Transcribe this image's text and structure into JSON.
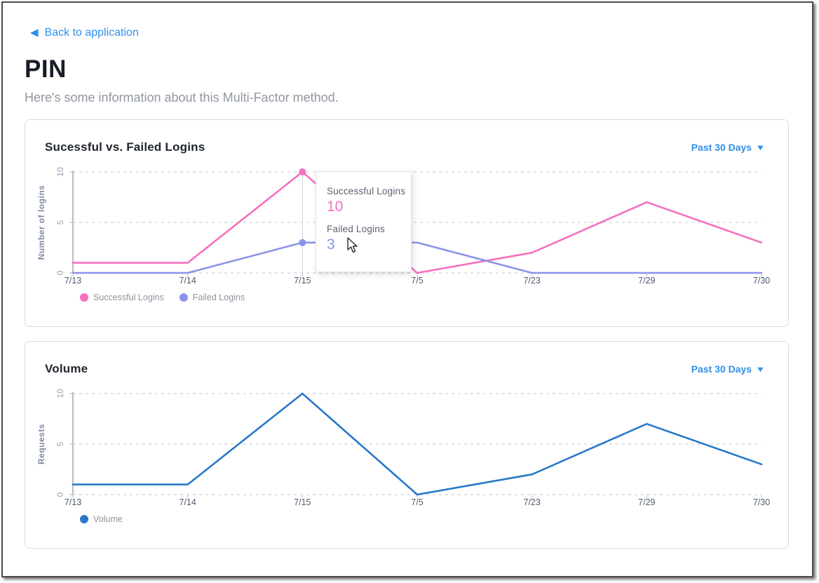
{
  "page": {
    "back_link": "Back to application",
    "title": "PIN",
    "subtitle": "Here's some information about this Multi-Factor method."
  },
  "colors": {
    "link_blue": "#2e90ec",
    "successful_pink": "#f570be",
    "failed_purple": "#8b93e8",
    "volume_blue": "#2878c8",
    "grid_grey": "#d6d9de",
    "axis_grey": "#b7bdc6",
    "xtick_slate": "#4e5b6e",
    "ytick_grey": "#99a1ad",
    "axis_label_slate": "#7d89a3"
  },
  "logins_card": {
    "title": "Sucessful vs. Failed Logins",
    "range_label": "Past 30 Days"
  },
  "volume_card": {
    "title": "Volume",
    "range_label": "Past 30 Days"
  },
  "tooltip": {
    "successful_label": "Successful Logins",
    "successful_value": "10",
    "failed_label": "Failed Logins",
    "failed_value": "3"
  },
  "chart_data": [
    {
      "type": "line",
      "title": "Sucessful vs. Failed Logins",
      "categories": [
        "7/13",
        "7/14",
        "7/15",
        "7/5",
        "7/23",
        "7/29",
        "7/30"
      ],
      "series": [
        {
          "name": "Successful Logins",
          "color": "#f570be",
          "values": [
            1,
            1,
            10,
            0,
            2,
            7,
            3
          ]
        },
        {
          "name": "Failed Logins",
          "color": "#8b93e8",
          "values": [
            0,
            0,
            3,
            3,
            0,
            0,
            0
          ]
        }
      ],
      "ylabel": "Number of logins",
      "xlabel": "",
      "yticks": [
        0,
        5,
        10
      ],
      "ylim": [
        0,
        10
      ],
      "grid": "dashed-horizontal",
      "legend_position": "bottom-left",
      "highlight_index": 2
    },
    {
      "type": "line",
      "title": "Volume",
      "categories": [
        "7/13",
        "7/14",
        "7/15",
        "7/5",
        "7/23",
        "7/29",
        "7/30"
      ],
      "series": [
        {
          "name": "Volume",
          "color": "#2878c8",
          "values": [
            1,
            1,
            10,
            0,
            2,
            7,
            3
          ]
        }
      ],
      "ylabel": "Requests",
      "xlabel": "",
      "yticks": [
        0,
        5,
        10
      ],
      "ylim": [
        0,
        10
      ],
      "grid": "dashed-horizontal",
      "legend_position": "bottom-left",
      "highlight_index": null
    }
  ]
}
